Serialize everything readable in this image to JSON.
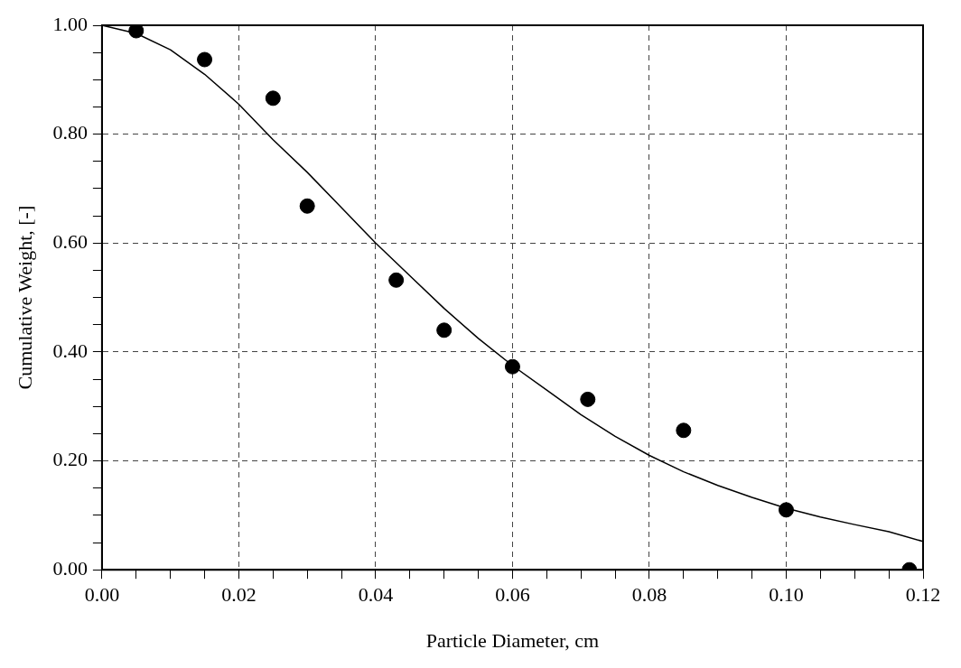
{
  "chart_data": {
    "type": "scatter",
    "xlabel": "Particle Diameter, cm",
    "ylabel": "Cumulative Weight, [-]",
    "xlim": [
      0,
      0.12
    ],
    "ylim": [
      0,
      1
    ],
    "xticks": [
      {
        "value": 0,
        "label": "0.00"
      },
      {
        "value": 0.005,
        "label": null
      },
      {
        "value": 0.01,
        "label": null
      },
      {
        "value": 0.015,
        "label": null
      },
      {
        "value": 0.02,
        "label": "0.02"
      },
      {
        "value": 0.025,
        "label": null
      },
      {
        "value": 0.03,
        "label": null
      },
      {
        "value": 0.035,
        "label": null
      },
      {
        "value": 0.04,
        "label": "0.04"
      },
      {
        "value": 0.045,
        "label": null
      },
      {
        "value": 0.05,
        "label": null
      },
      {
        "value": 0.055,
        "label": null
      },
      {
        "value": 0.06,
        "label": "0.06"
      },
      {
        "value": 0.065,
        "label": null
      },
      {
        "value": 0.07,
        "label": null
      },
      {
        "value": 0.075,
        "label": null
      },
      {
        "value": 0.08,
        "label": "0.08"
      },
      {
        "value": 0.085,
        "label": null
      },
      {
        "value": 0.09,
        "label": null
      },
      {
        "value": 0.095,
        "label": null
      },
      {
        "value": 0.1,
        "label": "0.10"
      },
      {
        "value": 0.105,
        "label": null
      },
      {
        "value": 0.11,
        "label": null
      },
      {
        "value": 0.115,
        "label": null
      },
      {
        "value": 0.12,
        "label": "0.12"
      }
    ],
    "yticks": [
      {
        "value": 0,
        "label": "0.00"
      },
      {
        "value": 0.05,
        "label": null
      },
      {
        "value": 0.1,
        "label": null
      },
      {
        "value": 0.15,
        "label": null
      },
      {
        "value": 0.2,
        "label": "0.20"
      },
      {
        "value": 0.25,
        "label": null
      },
      {
        "value": 0.3,
        "label": null
      },
      {
        "value": 0.35,
        "label": null
      },
      {
        "value": 0.4,
        "label": "0.40"
      },
      {
        "value": 0.45,
        "label": null
      },
      {
        "value": 0.5,
        "label": null
      },
      {
        "value": 0.55,
        "label": null
      },
      {
        "value": 0.6,
        "label": "0.60"
      },
      {
        "value": 0.65,
        "label": null
      },
      {
        "value": 0.7,
        "label": null
      },
      {
        "value": 0.75,
        "label": null
      },
      {
        "value": 0.8,
        "label": "0.80"
      },
      {
        "value": 0.85,
        "label": null
      },
      {
        "value": 0.9,
        "label": null
      },
      {
        "value": 0.95,
        "label": null
      },
      {
        "value": 1,
        "label": "1.00"
      }
    ],
    "grid": true,
    "legend": false,
    "series": [
      {
        "type": "scatter",
        "color": "#000000",
        "marker": "circle",
        "x": [
          0.005,
          0.015,
          0.025,
          0.03,
          0.043,
          0.05,
          0.06,
          0.071,
          0.085,
          0.1,
          0.118
        ],
        "values": [
          0.99,
          0.937,
          0.866,
          0.668,
          0.532,
          0.44,
          0.373,
          0.313,
          0.256,
          0.11,
          0.0
        ]
      },
      {
        "type": "line",
        "color": "#000000",
        "marker": "none",
        "line_style": "solid",
        "x": [
          0,
          0.005,
          0.01,
          0.015,
          0.02,
          0.025,
          0.03,
          0.035,
          0.04,
          0.045,
          0.05,
          0.055,
          0.06,
          0.065,
          0.07,
          0.075,
          0.08,
          0.085,
          0.09,
          0.095,
          0.1,
          0.105,
          0.11,
          0.115,
          0.12
        ],
        "values": [
          1.0,
          0.985,
          0.955,
          0.91,
          0.855,
          0.79,
          0.73,
          0.665,
          0.6,
          0.54,
          0.48,
          0.425,
          0.375,
          0.33,
          0.285,
          0.245,
          0.21,
          0.18,
          0.155,
          0.133,
          0.113,
          0.097,
          0.083,
          0.07,
          0.052
        ]
      }
    ]
  }
}
